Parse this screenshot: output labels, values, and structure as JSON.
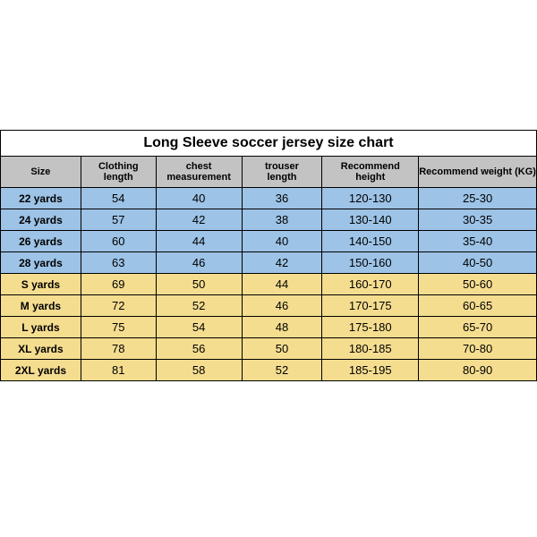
{
  "title": "Long Sleeve soccer jersey size chart",
  "columns": [
    "Size",
    "Clothing length",
    "chest measurement",
    "trouser length",
    "Recommend height",
    "Recommend weight (KG)"
  ],
  "col_widths": [
    "15%",
    "14%",
    "16%",
    "15%",
    "18%",
    "22%"
  ],
  "header_bg": "#c3c3c3",
  "groups": [
    {
      "bg": "#9dc3e6",
      "rows": [
        [
          "22 yards",
          "54",
          "40",
          "36",
          "120-130",
          "25-30"
        ],
        [
          "24 yards",
          "57",
          "42",
          "38",
          "130-140",
          "30-35"
        ],
        [
          "26 yards",
          "60",
          "44",
          "40",
          "140-150",
          "35-40"
        ],
        [
          "28 yards",
          "63",
          "46",
          "42",
          "150-160",
          "40-50"
        ]
      ]
    },
    {
      "bg": "#f5dd90",
      "rows": [
        [
          "S yards",
          "69",
          "50",
          "44",
          "160-170",
          "50-60"
        ],
        [
          "M yards",
          "72",
          "52",
          "46",
          "170-175",
          "60-65"
        ],
        [
          "L yards",
          "75",
          "54",
          "48",
          "175-180",
          "65-70"
        ],
        [
          "XL yards",
          "78",
          "56",
          "50",
          "180-185",
          "70-80"
        ],
        [
          "2XL yards",
          "81",
          "58",
          "52",
          "185-195",
          "80-90"
        ]
      ]
    }
  ],
  "border_color": "#000000"
}
